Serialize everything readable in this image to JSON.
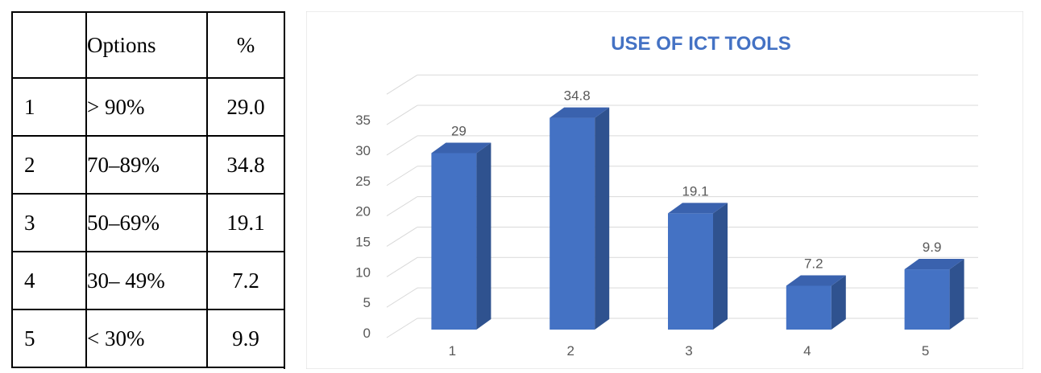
{
  "table": {
    "header": [
      "",
      "Options",
      "%"
    ],
    "rows": [
      [
        "1",
        " > 90%",
        "29.0"
      ],
      [
        "2",
        "70–89%",
        "34.8"
      ],
      [
        "3",
        "50–69%",
        "19.1"
      ],
      [
        "4",
        "30– 49%",
        "7.2"
      ],
      [
        "5",
        " < 30%",
        "9.9"
      ]
    ]
  },
  "chart_data": {
    "type": "bar",
    "title": "USE OF ICT TOOLS",
    "categories": [
      "1",
      "2",
      "3",
      "4",
      "5"
    ],
    "values": [
      29,
      34.8,
      19.1,
      7.2,
      9.9
    ],
    "value_labels": [
      "29",
      "34.8",
      "19.1",
      "7.2",
      "9.9"
    ],
    "yticks": [
      "0",
      "5",
      "10",
      "15",
      "20",
      "25",
      "30",
      "35"
    ],
    "ylim": [
      0,
      40
    ],
    "style": "3d-column",
    "grid": true,
    "bar_color": "#4472C4",
    "title_color": "#4472C4"
  }
}
